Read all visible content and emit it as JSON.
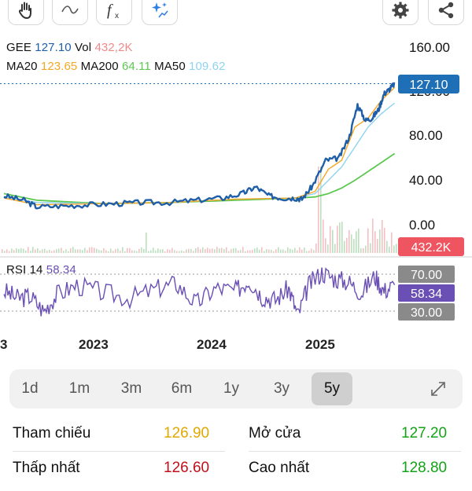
{
  "toolbar": {
    "tools": [
      "hand-tool-icon",
      "trend-line-icon",
      "function-icon",
      "ai-sparkle-icon"
    ],
    "actions": [
      "settings-icon",
      "share-icon"
    ]
  },
  "legend": {
    "symbol": "GEE",
    "price": "127.10",
    "vol_label": "Vol",
    "vol": "432,2K",
    "ma20_label": "MA20",
    "ma20": "123.65",
    "ma200_label": "MA200",
    "ma200": "64.11",
    "ma50_label": "MA50",
    "ma50": "109.62",
    "rsi_label": "RSI 14",
    "rsi": "58.34"
  },
  "colors": {
    "price": "#1f5fa8",
    "ma20": "#f5a623",
    "ma50": "#8fd3f0",
    "ma200": "#5cc84f",
    "rsi": "#6a4fb5",
    "vol_label": "#f08a8a",
    "price_badge": "#1f6fb6",
    "vol_badge": "#ee5561",
    "rsi_badge": "#6a4fb5",
    "grey_badge": "#8a8a8a",
    "up": "#13a318",
    "down": "#c0111b",
    "ref": "#e0a800"
  },
  "price_axis": {
    "ticks": [
      "160.00",
      "120.00",
      "80.00",
      "40.00",
      "0.00"
    ],
    "current_badge": "127.10",
    "volume_badge": "432.2K"
  },
  "rsi_axis": {
    "ticks": [
      "70.00",
      "30.00"
    ],
    "current_badge": "58.34"
  },
  "time_axis": {
    "labels": [
      "3",
      "2023",
      "2024",
      "2025"
    ]
  },
  "timeframes": {
    "items": [
      "1d",
      "1m",
      "3m",
      "6m",
      "1y",
      "3y",
      "5y"
    ],
    "active": "5y"
  },
  "stats": {
    "reference_label": "Tham chiếu",
    "reference": "126.90",
    "open_label": "Mở cửa",
    "open": "127.20",
    "low_label": "Thấp nhất",
    "low": "126.60",
    "high_label": "Cao nhất",
    "high": "128.80"
  },
  "chart_data": {
    "type": "line",
    "x_label_years": [
      "2023",
      "2024",
      "2025"
    ],
    "ylim": [
      0,
      160
    ],
    "series": [
      {
        "name": "GEE",
        "x": [
          2022.75,
          2022.9,
          2023.0,
          2023.2,
          2023.4,
          2023.6,
          2023.8,
          2024.0,
          2024.2,
          2024.4,
          2024.55,
          2024.65,
          2024.75,
          2024.85,
          2024.95,
          2025.0,
          2025.08,
          2025.18,
          2025.28,
          2025.36,
          2025.42,
          2025.48,
          2025.53,
          2025.58,
          2025.62,
          2025.66,
          2025.7
        ],
        "y": [
          26,
          22,
          16,
          17,
          18,
          19,
          20,
          20,
          22,
          24,
          28,
          34,
          26,
          24,
          24,
          23,
          35,
          58,
          60,
          80,
          108,
          94,
          96,
          104,
          118,
          122,
          127.1
        ]
      },
      {
        "name": "MA20",
        "x": [
          2022.75,
          2023.0,
          2023.5,
          2024.0,
          2024.5,
          2024.95,
          2025.1,
          2025.2,
          2025.3,
          2025.4,
          2025.5,
          2025.6,
          2025.7
        ],
        "y": [
          24,
          18,
          19,
          20,
          23,
          24,
          30,
          50,
          58,
          88,
          96,
          112,
          123.65
        ]
      },
      {
        "name": "MA50",
        "x": [
          2022.75,
          2023.0,
          2023.5,
          2024.0,
          2024.5,
          2024.95,
          2025.1,
          2025.2,
          2025.3,
          2025.4,
          2025.5,
          2025.6,
          2025.7
        ],
        "y": [
          25,
          20,
          19,
          20,
          23,
          24,
          28,
          40,
          52,
          70,
          88,
          100,
          109.62
        ]
      },
      {
        "name": "MA200",
        "x": [
          2022.75,
          2023.0,
          2023.5,
          2024.0,
          2024.5,
          2024.95,
          2025.1,
          2025.2,
          2025.3,
          2025.4,
          2025.5,
          2025.6,
          2025.7
        ],
        "y": [
          28,
          22,
          19,
          20,
          22,
          24,
          25,
          28,
          33,
          40,
          48,
          56,
          64.11
        ]
      },
      {
        "name": "RSI 14",
        "x": [
          2022.75,
          2022.85,
          2022.95,
          2023.05,
          2023.15,
          2023.3,
          2023.5,
          2023.7,
          2023.9,
          2024.05,
          2024.2,
          2024.35,
          2024.5,
          2024.6,
          2024.7,
          2024.8,
          2024.9,
          2024.97,
          2025.05,
          2025.15,
          2025.25,
          2025.35,
          2025.45,
          2025.55,
          2025.62,
          2025.7
        ],
        "y": [
          52,
          44,
          46,
          30,
          48,
          58,
          50,
          44,
          54,
          60,
          38,
          55,
          52,
          64,
          46,
          42,
          55,
          25,
          58,
          72,
          65,
          62,
          50,
          68,
          52,
          58.34
        ]
      }
    ],
    "rsi_levels": [
      70,
      30
    ]
  }
}
